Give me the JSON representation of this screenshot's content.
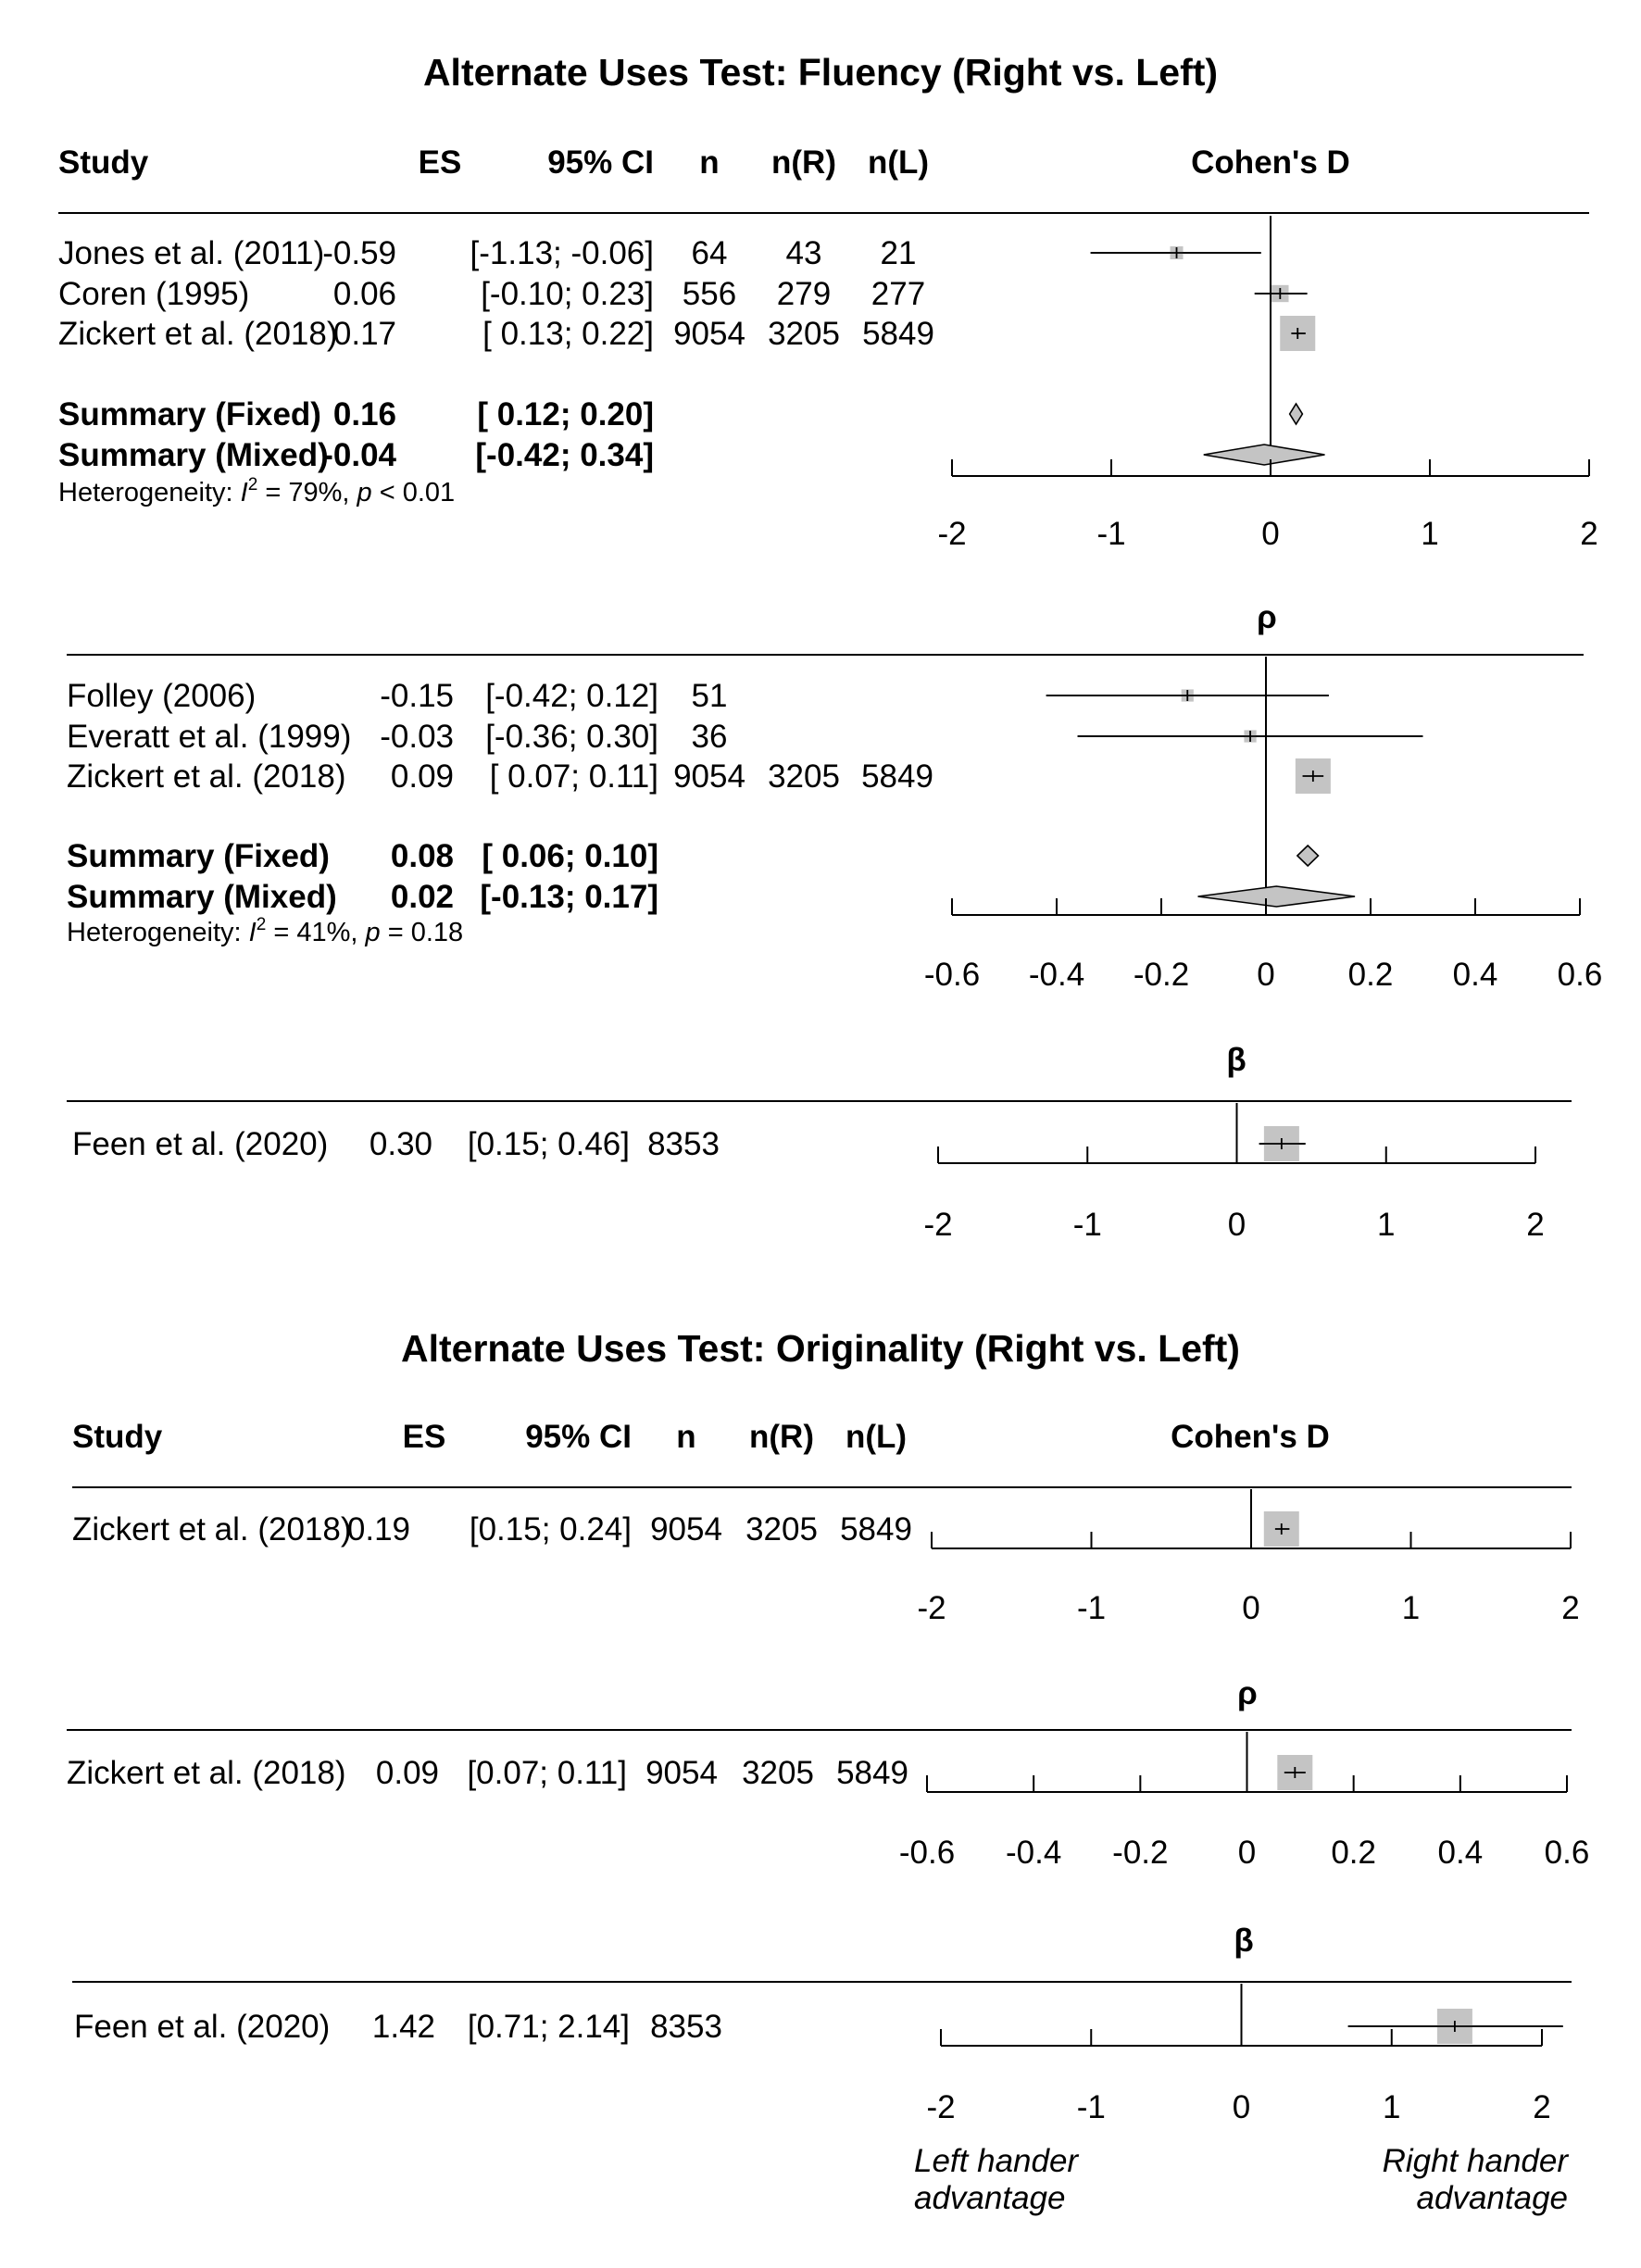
{
  "chart_data": [
    {
      "type": "forest",
      "title": "Alternate Uses Test: Fluency (Right vs. Left)",
      "columns": [
        "Study",
        "ES",
        "95% CI",
        "n",
        "n(R)",
        "n(L)"
      ],
      "axis_title": "Cohen's D",
      "xlim": [
        -2,
        2
      ],
      "ticks": [
        -2,
        -1,
        0,
        1,
        2
      ],
      "tick_labels": [
        "-2",
        "-1",
        "0",
        "1",
        "2"
      ],
      "studies": [
        {
          "study": "Jones et al. (2011)",
          "es": "-0.59",
          "ci": "[-1.13; -0.06]",
          "n": "64",
          "nr": "43",
          "nl": "21",
          "est": -0.59,
          "lo": -1.13,
          "hi": -0.06,
          "weight": 0.04
        },
        {
          "study": "Coren (1995)",
          "es": "0.06",
          "ci": "[-0.10;  0.23]",
          "n": "556",
          "nr": "279",
          "nl": "277",
          "est": 0.06,
          "lo": -0.1,
          "hi": 0.23,
          "weight": 0.12
        },
        {
          "study": "Zickert et al. (2018)",
          "es": "0.17",
          "ci": "[ 0.13;  0.22]",
          "n": "9054",
          "nr": "3205",
          "nl": "5849",
          "est": 0.17,
          "lo": 0.13,
          "hi": 0.22,
          "weight": 1.0
        }
      ],
      "summaries": [
        {
          "label": "Summary (Fixed)",
          "es": "0.16",
          "ci": "[ 0.12;  0.20]",
          "est": 0.16,
          "lo": 0.12,
          "hi": 0.2
        },
        {
          "label": "Summary (Mixed)",
          "es": "-0.04",
          "ci": "[-0.42;  0.34]",
          "est": -0.04,
          "lo": -0.42,
          "hi": 0.34
        }
      ],
      "heterogeneity": {
        "prefix": "Heterogeneity: ",
        "i2_value": " = 79%, ",
        "p_value": " < 0.01"
      }
    },
    {
      "type": "forest",
      "axis_title": "ρ",
      "xlim": [
        -0.6,
        0.6
      ],
      "ticks": [
        -0.6,
        -0.4,
        -0.2,
        0,
        0.2,
        0.4,
        0.6
      ],
      "tick_labels": [
        "-0.6",
        "-0.4",
        "-0.2",
        "0",
        "0.2",
        "0.4",
        "0.6"
      ],
      "studies": [
        {
          "study": "Folley (2006)",
          "es": "-0.15",
          "ci": "[-0.42; 0.12]",
          "n": "51",
          "nr": "",
          "nl": "",
          "est": -0.15,
          "lo": -0.42,
          "hi": 0.12,
          "weight": 0.03
        },
        {
          "study": "Everatt et al. (1999)",
          "es": "-0.03",
          "ci": "[-0.36; 0.30]",
          "n": "36",
          "nr": "",
          "nl": "",
          "est": -0.03,
          "lo": -0.36,
          "hi": 0.3,
          "weight": 0.03
        },
        {
          "study": "Zickert et al. (2018)",
          "es": "0.09",
          "ci": "[ 0.07; 0.11]",
          "n": "9054",
          "nr": "3205",
          "nl": "5849",
          "est": 0.09,
          "lo": 0.07,
          "hi": 0.11,
          "weight": 1.0
        }
      ],
      "summaries": [
        {
          "label": "Summary (Fixed)",
          "es": "0.08",
          "ci": "[ 0.06; 0.10]",
          "est": 0.08,
          "lo": 0.06,
          "hi": 0.1
        },
        {
          "label": "Summary (Mixed)",
          "es": "0.02",
          "ci": "[-0.13; 0.17]",
          "est": 0.02,
          "lo": -0.13,
          "hi": 0.17
        }
      ],
      "heterogeneity": {
        "prefix": "Heterogeneity: ",
        "i2_value": " = 41%, ",
        "p_value": " = 0.18"
      }
    },
    {
      "type": "forest",
      "axis_title": "β",
      "xlim": [
        -2,
        2
      ],
      "ticks": [
        -2,
        -1,
        0,
        1,
        2
      ],
      "tick_labels": [
        "-2",
        "-1",
        "0",
        "1",
        "2"
      ],
      "studies": [
        {
          "study": "Feen et al. (2020)",
          "es": "0.30",
          "ci": "[0.15; 0.46]",
          "n": "8353",
          "nr": "",
          "nl": "",
          "est": 0.3,
          "lo": 0.15,
          "hi": 0.46,
          "weight": 1.0
        }
      ]
    },
    {
      "type": "forest",
      "title": "Alternate Uses Test: Originality (Right vs. Left)",
      "columns": [
        "Study",
        "ES",
        "95% CI",
        "n",
        "n(R)",
        "n(L)"
      ],
      "axis_title": "Cohen's D",
      "xlim": [
        -2,
        2
      ],
      "ticks": [
        -2,
        -1,
        0,
        1,
        2
      ],
      "tick_labels": [
        "-2",
        "-1",
        "0",
        "1",
        "2"
      ],
      "studies": [
        {
          "study": "Zickert et al. (2018)",
          "es": "0.19",
          "ci": "[0.15; 0.24]",
          "n": "9054",
          "nr": "3205",
          "nl": "5849",
          "est": 0.19,
          "lo": 0.15,
          "hi": 0.24,
          "weight": 1.0
        }
      ]
    },
    {
      "type": "forest",
      "axis_title": "ρ",
      "xlim": [
        -0.6,
        0.6
      ],
      "ticks": [
        -0.6,
        -0.4,
        -0.2,
        0,
        0.2,
        0.4,
        0.6
      ],
      "tick_labels": [
        "-0.6",
        "-0.4",
        "-0.2",
        "0",
        "0.2",
        "0.4",
        "0.6"
      ],
      "studies": [
        {
          "study": "Zickert et al. (2018)",
          "es": "0.09",
          "ci": "[0.07; 0.11]",
          "n": "9054",
          "nr": "3205",
          "nl": "5849",
          "est": 0.09,
          "lo": 0.07,
          "hi": 0.11,
          "weight": 1.0
        }
      ]
    },
    {
      "type": "forest",
      "axis_title": "β",
      "xlim": [
        -2,
        2
      ],
      "ticks": [
        -2,
        -1,
        0,
        1,
        2
      ],
      "tick_labels": [
        "-2",
        "-1",
        "0",
        "1",
        "2"
      ],
      "studies": [
        {
          "study": "Feen et al. (2020)",
          "es": "1.42",
          "ci": "[0.71; 2.14]",
          "n": "8353",
          "nr": "",
          "nl": "",
          "est": 1.42,
          "lo": 0.71,
          "hi": 2.14,
          "weight": 1.0
        }
      ],
      "footnotes": {
        "left": [
          "Left hander",
          "advantage"
        ],
        "right": [
          "Right hander",
          "advantage"
        ]
      }
    }
  ]
}
